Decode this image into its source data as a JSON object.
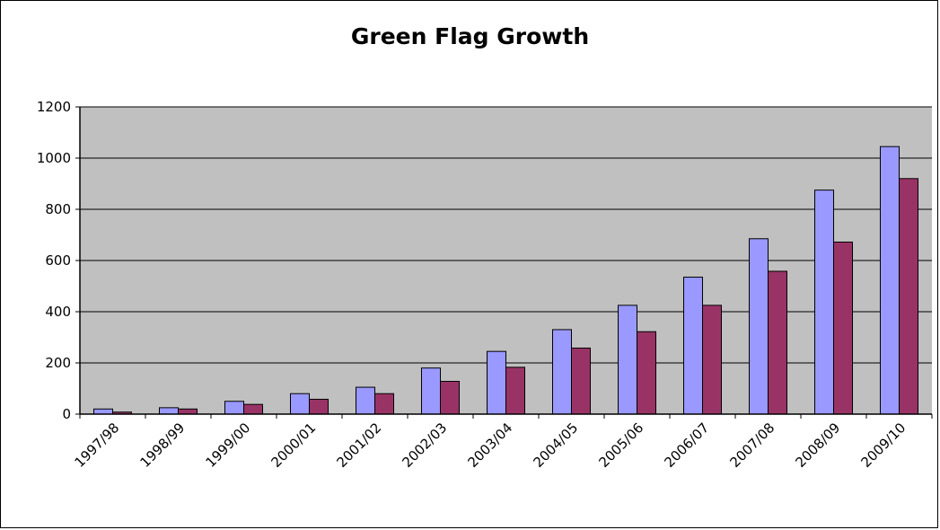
{
  "chart_data": {
    "type": "bar",
    "title": "Green Flag Growth",
    "xlabel": "",
    "ylabel": "",
    "categories": [
      "1997/98",
      "1998/99",
      "1999/00",
      "2000/01",
      "2001/02",
      "2002/03",
      "2003/04",
      "2004/05",
      "2005/06",
      "2006/07",
      "2007/08",
      "2008/09",
      "2009/10"
    ],
    "series": [
      {
        "values": [
          20,
          25,
          50,
          80,
          105,
          180,
          245,
          330,
          425,
          535,
          685,
          875,
          1045
        ]
      },
      {
        "values": [
          8,
          20,
          38,
          58,
          80,
          128,
          183,
          258,
          322,
          425,
          558,
          672,
          920
        ]
      }
    ],
    "ylim": [
      0,
      1200
    ],
    "yticks": [
      0,
      200,
      400,
      600,
      800,
      1000,
      1200
    ],
    "grid": true,
    "legend": "none"
  },
  "colors": {
    "plot_background": "#C0C0C0",
    "series_1": "#9999FF",
    "series_2": "#993366",
    "gridline": "#000000"
  }
}
